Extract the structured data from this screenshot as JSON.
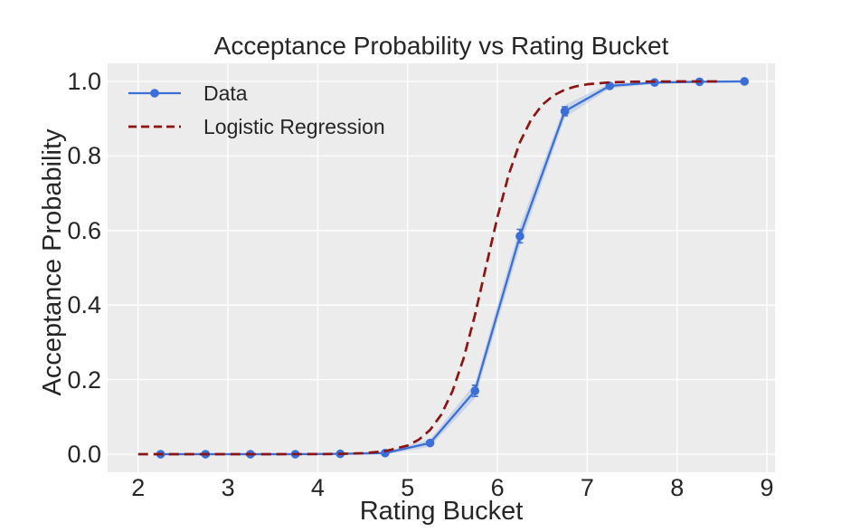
{
  "chart_data": {
    "type": "line",
    "title": "Acceptance Probability vs Rating Bucket",
    "xlabel": "Rating Bucket",
    "ylabel": "Acceptance Probability",
    "xlim": [
      1.66,
      9.09
    ],
    "ylim": [
      -0.0485,
      1.0485
    ],
    "grid": true,
    "legend_position": "upper-left",
    "x_ticks": [
      {
        "v": 2,
        "label": "2"
      },
      {
        "v": 3,
        "label": "3"
      },
      {
        "v": 4,
        "label": "4"
      },
      {
        "v": 5,
        "label": "5"
      },
      {
        "v": 6,
        "label": "6"
      },
      {
        "v": 7,
        "label": "7"
      },
      {
        "v": 8,
        "label": "8"
      },
      {
        "v": 9,
        "label": "9"
      }
    ],
    "y_ticks": [
      {
        "v": 0.0,
        "label": "0.0"
      },
      {
        "v": 0.2,
        "label": "0.2"
      },
      {
        "v": 0.4,
        "label": "0.4"
      },
      {
        "v": 0.6,
        "label": "0.6"
      },
      {
        "v": 0.8,
        "label": "0.8"
      },
      {
        "v": 1.0,
        "label": "1.0"
      }
    ],
    "series": [
      {
        "name": "Data",
        "style": "solid-with-markers",
        "color": "#3a6fd8",
        "x": [
          2.25,
          2.75,
          3.25,
          3.75,
          4.25,
          4.75,
          5.25,
          5.75,
          6.25,
          6.75,
          7.25,
          7.75,
          8.25,
          8.75
        ],
        "y": [
          0.0,
          0.0,
          0.0,
          0.0,
          0.001,
          0.003,
          0.03,
          0.17,
          0.585,
          0.92,
          0.988,
          0.997,
          0.999,
          1.0
        ],
        "yerr": [
          0.0,
          0.0,
          0.0,
          0.0,
          0.001,
          0.002,
          0.006,
          0.015,
          0.018,
          0.012,
          0.005,
          0.002,
          0.001,
          0.0
        ],
        "band": [
          0.003,
          0.003,
          0.003,
          0.003,
          0.003,
          0.004,
          0.01,
          0.02,
          0.027,
          0.017,
          0.007,
          0.004,
          0.003,
          0.003
        ]
      },
      {
        "name": "Logistic Regression",
        "style": "dashed",
        "color": "#8c1414",
        "x": [
          2.0,
          2.5,
          3.0,
          3.5,
          4.0,
          4.25,
          4.5,
          4.75,
          5.0,
          5.125,
          5.25,
          5.375,
          5.5,
          5.625,
          5.75,
          5.875,
          6.0,
          6.125,
          6.25,
          6.375,
          6.5,
          6.625,
          6.75,
          6.875,
          7.0,
          7.25,
          7.5,
          7.75,
          8.0,
          8.25,
          8.5
        ],
        "y": [
          0.0,
          0.0,
          0.0,
          0.0001,
          0.0003,
          0.0009,
          0.0028,
          0.008,
          0.0232,
          0.0391,
          0.0651,
          0.1063,
          0.1694,
          0.2585,
          0.3738,
          0.5054,
          0.6362,
          0.7496,
          0.8368,
          0.8976,
          0.9375,
          0.9625,
          0.9778,
          0.9868,
          0.9923,
          0.9974,
          0.9991,
          0.9997,
          0.9999,
          1.0,
          1.0
        ]
      }
    ],
    "colors": {
      "figure_bg": "#ffffff",
      "plot_bg": "#ececec",
      "grid": "#ffffff",
      "text": "#262626",
      "data_line": "#3a6fd8",
      "regression_line": "#8c1414",
      "band": "#7f9fdf"
    }
  }
}
